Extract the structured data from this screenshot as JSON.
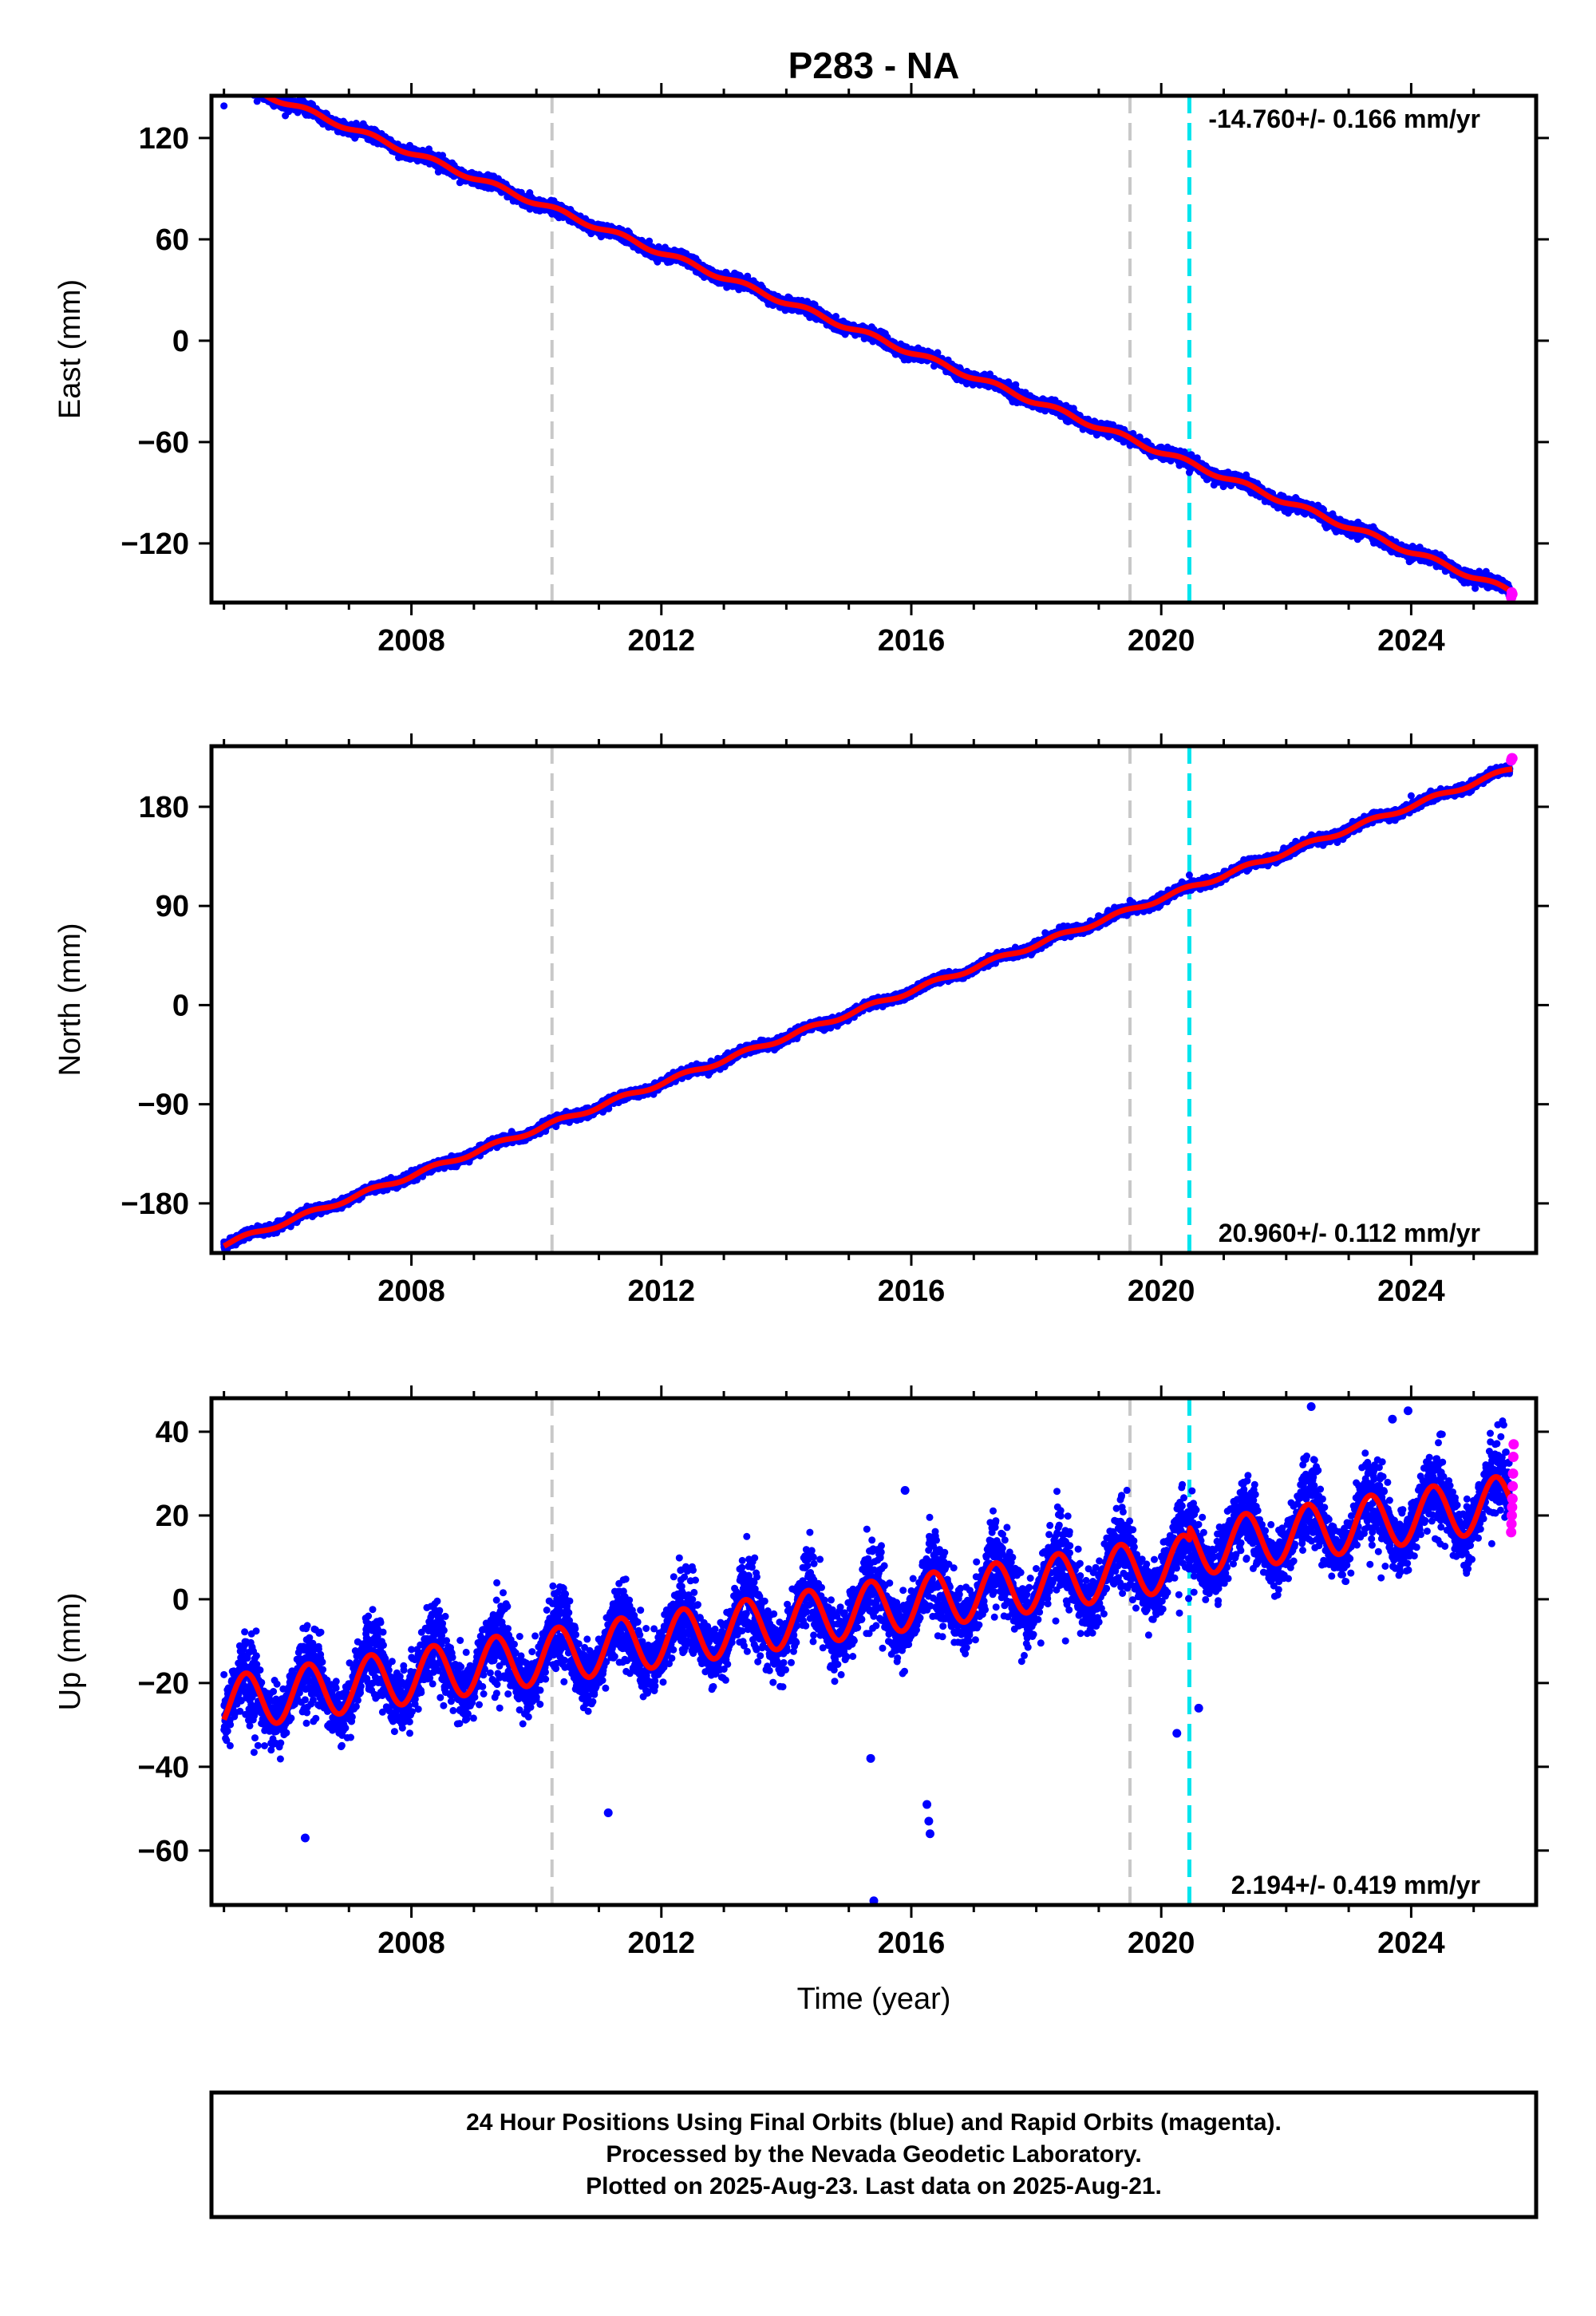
{
  "figure": {
    "title": "P283 - NA",
    "xlabel": "Time (year)",
    "footer": [
      "24 Hour Positions Using Final Orbits (blue) and Rapid Orbits (magenta).",
      "Processed by the Nevada Geodetic Laboratory.",
      "Plotted on 2025-Aug-23. Last data on 2025-Aug-21."
    ]
  },
  "colors": {
    "final_orbits": "#0000ff",
    "rapid_orbits": "#ff00ff",
    "model_fit": "#ff0000",
    "equipment_change": "#c8c8c8",
    "event_line": "#00e5ee"
  },
  "chart_data": [
    {
      "type": "scatter",
      "ylabel": "East (mm)",
      "xlim": [
        2004.8,
        2026.0
      ],
      "ylim": [
        -155,
        145
      ],
      "xticks": [
        2008,
        2012,
        2016,
        2020,
        2024
      ],
      "xtick_labels": [
        "2008",
        "2012",
        "2016",
        "2020",
        "2024"
      ],
      "yticks": [
        120,
        60,
        0,
        -60,
        -120
      ],
      "ytick_labels": [
        "120",
        "60",
        "0",
        "−60",
        "−120"
      ],
      "rate_text": "-14.760+/- 0.166 mm/yr",
      "rate_position": "top-right",
      "vlines_gray": [
        2010.25,
        2019.5
      ],
      "vline_cyan": 2020.45,
      "trend": {
        "t0": 2015.0,
        "y0": 8.0,
        "slope": -14.76
      },
      "seasonal": {
        "amplitude": 1.5,
        "period": 1.0
      },
      "noise_mm": 3.0,
      "rapid_final": [
        -152,
        -151,
        -149
      ],
      "series": [
        {
          "name": "Final Orbits",
          "color": "#0000ff",
          "points": [
            [
              2005.0,
              139
            ],
            [
              2008.0,
              110
            ],
            [
              2010.25,
              75
            ],
            [
              2012.0,
              52
            ],
            [
              2016.0,
              -5
            ],
            [
              2019.5,
              -62
            ],
            [
              2020.45,
              -78
            ],
            [
              2024.0,
              -130
            ],
            [
              2025.6,
              -148
            ]
          ]
        },
        {
          "name": "Rapid Orbits",
          "color": "#ff00ff",
          "points": [
            [
              2025.62,
              -150
            ]
          ]
        }
      ]
    },
    {
      "type": "scatter",
      "ylabel": "North (mm)",
      "xlim": [
        2004.8,
        2026.0
      ],
      "ylim": [
        -225,
        235
      ],
      "xticks": [
        2008,
        2012,
        2016,
        2020,
        2024
      ],
      "xtick_labels": [
        "2008",
        "2012",
        "2016",
        "2020",
        "2024"
      ],
      "yticks": [
        180,
        90,
        0,
        -90,
        -180
      ],
      "ytick_labels": [
        "180",
        "90",
        "0",
        "−90",
        "−180"
      ],
      "rate_text": "20.960+/- 0.112 mm/yr",
      "rate_position": "bottom-right",
      "vlines_gray": [
        2010.25,
        2019.5
      ],
      "vline_cyan": 2020.45,
      "trend": {
        "t0": 2015.0,
        "y0": -8.0,
        "slope": 20.96
      },
      "seasonal": {
        "amplitude": 2.0,
        "period": 1.0
      },
      "noise_mm": 3.5,
      "rapid_final": [
        222,
        223,
        224
      ],
      "series": [
        {
          "name": "Final Orbits",
          "color": "#0000ff",
          "points": [
            [
              2005.0,
              -215
            ],
            [
              2008.0,
              -150
            ],
            [
              2010.25,
              -105
            ],
            [
              2012.0,
              -68
            ],
            [
              2016.0,
              15
            ],
            [
              2019.5,
              95
            ],
            [
              2020.45,
              118
            ],
            [
              2024.0,
              190
            ],
            [
              2025.6,
              222
            ]
          ]
        },
        {
          "name": "Rapid Orbits",
          "color": "#ff00ff",
          "points": [
            [
              2025.62,
              224
            ]
          ]
        }
      ]
    },
    {
      "type": "scatter",
      "ylabel": "Up (mm)",
      "xlim": [
        2004.8,
        2026.0
      ],
      "ylim": [
        -73,
        48
      ],
      "xticks": [
        2008,
        2012,
        2016,
        2020,
        2024
      ],
      "xtick_labels": [
        "2008",
        "2012",
        "2016",
        "2020",
        "2024"
      ],
      "yticks": [
        40,
        20,
        0,
        -20,
        -40,
        -60
      ],
      "ytick_labels": [
        "40",
        "20",
        "0",
        "−20",
        "−40",
        "−60"
      ],
      "rate_text": "2.194+/- 0.419 mm/yr",
      "rate_position": "bottom-right",
      "vlines_gray": [
        2010.25,
        2019.5
      ],
      "vline_cyan": 2020.45,
      "trend": {
        "t0": 2015.0,
        "y0": -3.0,
        "slope": 2.194
      },
      "seasonal": {
        "amplitude": 6.5,
        "period": 1.0
      },
      "noise_mm": 6.0,
      "rapid_final": [
        16,
        18,
        20,
        22,
        24,
        27,
        30,
        34,
        37
      ],
      "outliers": [
        [
          2006.3,
          -57
        ],
        [
          2011.15,
          -51
        ],
        [
          2015.4,
          -72
        ],
        [
          2015.35,
          -38
        ],
        [
          2016.25,
          -49
        ],
        [
          2016.3,
          -56
        ],
        [
          2016.28,
          -53
        ],
        [
          2020.25,
          -32
        ],
        [
          2020.6,
          -26
        ],
        [
          2022.4,
          46
        ],
        [
          2023.7,
          43
        ],
        [
          2023.95,
          45
        ],
        [
          2015.9,
          26
        ]
      ],
      "series": [
        {
          "name": "Final Orbits",
          "color": "#0000ff",
          "points": [
            [
              2005.0,
              -18
            ],
            [
              2006.3,
              -24
            ],
            [
              2008.0,
              -12
            ],
            [
              2010.25,
              -8
            ],
            [
              2012.0,
              -8
            ],
            [
              2016.0,
              2
            ],
            [
              2019.5,
              5
            ],
            [
              2020.45,
              8
            ],
            [
              2024.0,
              16
            ],
            [
              2025.6,
              20
            ]
          ]
        },
        {
          "name": "Rapid Orbits",
          "color": "#ff00ff",
          "points": [
            [
              2025.62,
              24
            ]
          ]
        }
      ]
    }
  ]
}
